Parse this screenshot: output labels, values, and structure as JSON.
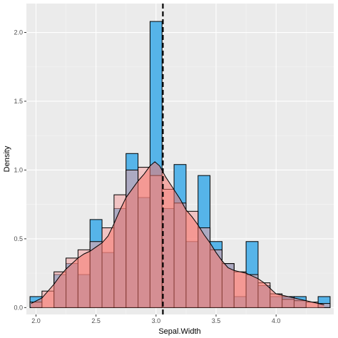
{
  "chart_data": {
    "type": "histogram",
    "xlabel": "Sepal.Width",
    "ylabel": "Density",
    "xlim": [
      1.92,
      4.48
    ],
    "ylim": [
      -0.05,
      2.21
    ],
    "x_ticks": [
      2.0,
      2.5,
      3.0,
      3.5,
      4.0
    ],
    "x_tick_labels": [
      "2.0",
      "2.5",
      "3.0",
      "3.5",
      "4.0"
    ],
    "y_ticks": [
      0.0,
      0.5,
      1.0,
      1.5,
      2.0
    ],
    "y_tick_labels": [
      "0.0",
      "0.5",
      "1.0",
      "1.5",
      "2.0"
    ],
    "grid": true,
    "background": "#ebebeb",
    "histogram": {
      "bin_width": 0.1,
      "bin_centers": [
        2.0,
        2.1,
        2.2,
        2.3,
        2.4,
        2.5,
        2.6,
        2.7,
        2.8,
        2.9,
        3.0,
        3.1,
        3.2,
        3.3,
        3.4,
        3.5,
        3.6,
        3.7,
        3.8,
        3.9,
        4.0,
        4.1,
        4.2,
        4.3,
        4.4
      ],
      "blue_density": [
        0.08,
        0.0,
        0.24,
        0.32,
        0.24,
        0.64,
        0.4,
        0.72,
        1.12,
        0.8,
        2.08,
        0.72,
        1.04,
        0.48,
        0.96,
        0.48,
        0.32,
        0.08,
        0.48,
        0.16,
        0.08,
        0.08,
        0.08,
        0.0,
        0.08
      ],
      "pink_density": [
        0.04,
        0.12,
        0.26,
        0.36,
        0.42,
        0.48,
        0.58,
        0.82,
        1.0,
        1.02,
        0.96,
        0.86,
        0.76,
        0.7,
        0.58,
        0.42,
        0.32,
        0.26,
        0.24,
        0.18,
        0.1,
        0.06,
        0.05,
        0.04,
        0.03
      ],
      "blue_color": "#56b4e9",
      "pink_color": "#f4a3a3"
    },
    "density_curve": {
      "x": [
        1.96,
        2.05,
        2.1,
        2.15,
        2.2,
        2.25,
        2.3,
        2.35,
        2.4,
        2.45,
        2.5,
        2.55,
        2.6,
        2.65,
        2.7,
        2.75,
        2.8,
        2.85,
        2.9,
        2.95,
        2.99,
        3.03,
        3.08,
        3.14,
        3.2,
        3.25,
        3.3,
        3.35,
        3.4,
        3.45,
        3.5,
        3.55,
        3.6,
        3.65,
        3.7,
        3.75,
        3.8,
        3.85,
        3.9,
        3.95,
        4.0,
        4.1,
        4.2,
        4.3,
        4.4
      ],
      "y": [
        0.03,
        0.07,
        0.12,
        0.17,
        0.23,
        0.28,
        0.32,
        0.36,
        0.39,
        0.41,
        0.44,
        0.47,
        0.52,
        0.61,
        0.71,
        0.8,
        0.86,
        0.92,
        0.97,
        1.03,
        1.06,
        1.03,
        0.95,
        0.87,
        0.79,
        0.71,
        0.66,
        0.6,
        0.53,
        0.47,
        0.4,
        0.34,
        0.29,
        0.27,
        0.26,
        0.25,
        0.23,
        0.21,
        0.18,
        0.14,
        0.1,
        0.08,
        0.06,
        0.04,
        0.02
      ],
      "fill_color": "#f8766d",
      "fill_opacity": 0.55,
      "line_color": "#000000"
    },
    "mean_line": {
      "value": 3.057,
      "style": "dashed",
      "color": "#000000"
    }
  }
}
